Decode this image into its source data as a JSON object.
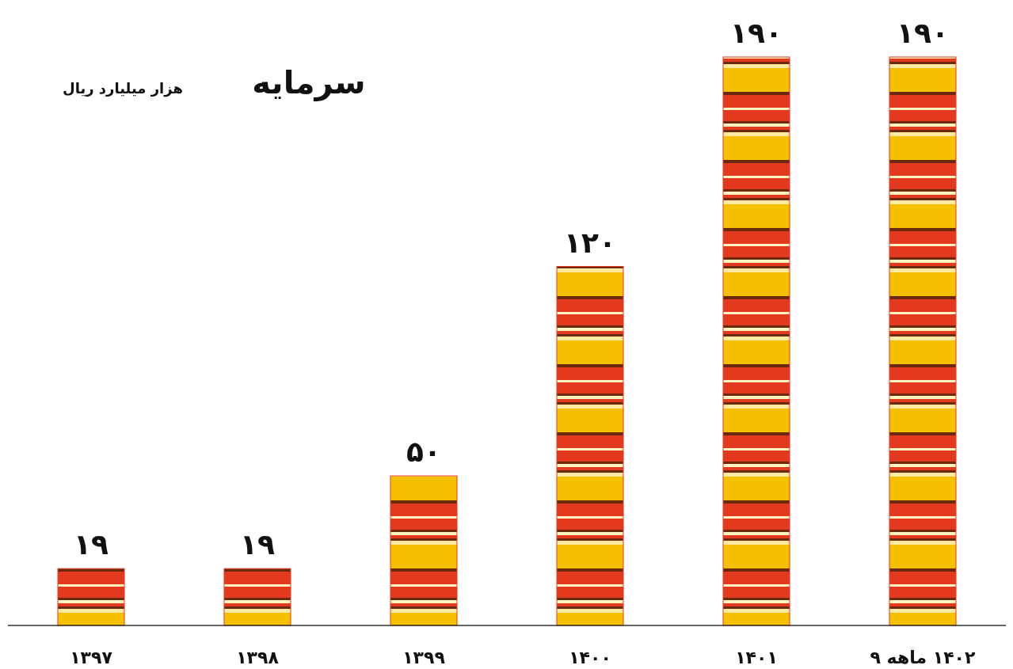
{
  "chart_data": {
    "type": "bar",
    "title": "سرمایه",
    "subtitle": "هزار میلیارد ریال",
    "categories": [
      "۱۳۹۷",
      "۱۳۹۸",
      "۱۳۹۹",
      "۱۴۰۰",
      "۱۴۰۱",
      "۱۴۰۲ ماهه ۹"
    ],
    "values": [
      19,
      19,
      50,
      120,
      190,
      190
    ],
    "value_labels": [
      "۱۹",
      "۱۹",
      "۵۰",
      "۱۲۰",
      "۱۹۰",
      "۱۹۰"
    ],
    "color": "#e33a1f"
  }
}
